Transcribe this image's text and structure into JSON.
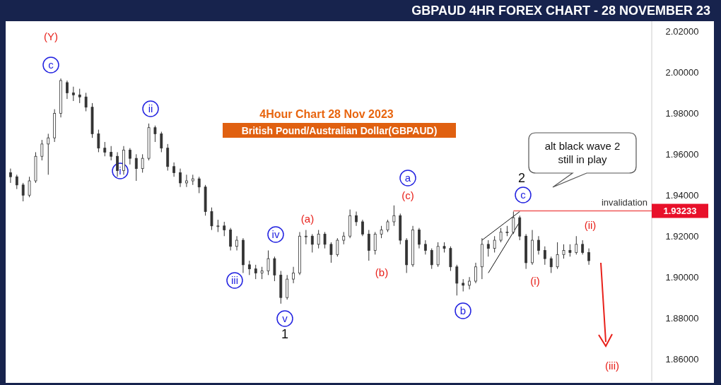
{
  "chart_data": {
    "type": "candlestick",
    "title": "GBPAUD 4HR FOREX CHART - 28 NOVEMBER 23",
    "categories": [
      null,
      null,
      null,
      null,
      null,
      null,
      null,
      null,
      null,
      null,
      null,
      null,
      null,
      null,
      null,
      null,
      null,
      null,
      null,
      null,
      null,
      null,
      null,
      null,
      null,
      null,
      null,
      null,
      null,
      null,
      null,
      null,
      null,
      null,
      null,
      null,
      null,
      null,
      null,
      null,
      null,
      null,
      null,
      null,
      null,
      null,
      null,
      null,
      null,
      null,
      null,
      null,
      null,
      null,
      null,
      null,
      null,
      null,
      null,
      null,
      null,
      null,
      null,
      null,
      null,
      null,
      null,
      null,
      null,
      null,
      null,
      null,
      null,
      null,
      null,
      null,
      null,
      null,
      null,
      null,
      null,
      null,
      null,
      null,
      null,
      null,
      null,
      null,
      null,
      null,
      null,
      null,
      null,
      null,
      null,
      null,
      null,
      null,
      null,
      null,
      null,
      null
    ],
    "ohlc": [
      [
        1.951,
        1.953,
        1.946,
        1.949
      ],
      [
        1.949,
        1.95,
        1.943,
        1.945
      ],
      [
        1.945,
        1.946,
        1.937,
        1.94
      ],
      [
        1.94,
        1.949,
        1.939,
        1.947
      ],
      [
        1.947,
        1.961,
        1.946,
        1.959
      ],
      [
        1.959,
        1.967,
        1.957,
        1.965
      ],
      [
        1.965,
        1.97,
        1.95,
        1.968
      ],
      [
        1.968,
        1.982,
        1.966,
        1.98
      ],
      [
        1.98,
        1.997,
        1.978,
        1.996
      ],
      [
        1.995,
        1.996,
        1.987,
        1.99
      ],
      [
        1.99,
        1.993,
        1.986,
        1.989
      ],
      [
        1.989,
        1.992,
        1.985,
        1.988
      ],
      [
        1.988,
        1.99,
        1.981,
        1.983
      ],
      [
        1.983,
        1.985,
        1.968,
        1.97
      ],
      [
        1.97,
        1.972,
        1.961,
        1.963
      ],
      [
        1.963,
        1.966,
        1.959,
        1.961
      ],
      [
        1.961,
        1.964,
        1.957,
        1.959
      ],
      [
        1.959,
        1.961,
        1.949,
        1.952
      ],
      [
        1.952,
        1.964,
        1.95,
        1.962
      ],
      [
        1.962,
        1.963,
        1.955,
        1.958
      ],
      [
        1.958,
        1.96,
        1.947,
        1.953
      ],
      [
        1.953,
        1.96,
        1.951,
        1.958
      ],
      [
        1.958,
        1.975,
        1.957,
        1.973
      ],
      [
        1.973,
        1.974,
        1.966,
        1.97
      ],
      [
        1.97,
        1.971,
        1.961,
        1.963
      ],
      [
        1.963,
        1.965,
        1.952,
        1.954
      ],
      [
        1.954,
        1.956,
        1.949,
        1.951
      ],
      [
        1.951,
        1.953,
        1.944,
        1.946
      ],
      [
        1.946,
        1.95,
        1.944,
        1.947
      ],
      [
        1.947,
        1.95,
        1.945,
        1.948
      ],
      [
        1.948,
        1.949,
        1.941,
        1.944
      ],
      [
        1.944,
        1.945,
        1.93,
        1.932
      ],
      [
        1.932,
        1.934,
        1.923,
        1.925
      ],
      [
        1.925,
        1.928,
        1.922,
        1.925
      ],
      [
        1.925,
        1.927,
        1.92,
        1.923
      ],
      [
        1.923,
        1.924,
        1.913,
        1.915
      ],
      [
        1.915,
        1.92,
        1.913,
        1.918
      ],
      [
        1.918,
        1.919,
        1.902,
        1.906
      ],
      [
        1.906,
        1.908,
        1.901,
        1.904
      ],
      [
        1.904,
        1.906,
        1.899,
        1.902
      ],
      [
        1.902,
        1.905,
        1.899,
        1.903
      ],
      [
        1.903,
        1.913,
        1.901,
        1.909
      ],
      [
        1.909,
        1.91,
        1.898,
        1.901
      ],
      [
        1.901,
        1.903,
        1.887,
        1.89
      ],
      [
        1.89,
        1.901,
        1.889,
        1.899
      ],
      [
        1.899,
        1.905,
        1.897,
        1.902
      ],
      [
        1.902,
        1.922,
        1.901,
        1.92
      ],
      [
        1.92,
        1.923,
        1.916,
        1.92
      ],
      [
        1.92,
        1.921,
        1.912,
        1.916
      ],
      [
        1.916,
        1.923,
        1.914,
        1.921
      ],
      [
        1.921,
        1.922,
        1.914,
        1.916
      ],
      [
        1.916,
        1.917,
        1.907,
        1.911
      ],
      [
        1.911,
        1.919,
        1.91,
        1.918
      ],
      [
        1.918,
        1.922,
        1.916,
        1.92
      ],
      [
        1.92,
        1.933,
        1.919,
        1.93
      ],
      [
        1.93,
        1.932,
        1.925,
        1.927
      ],
      [
        1.927,
        1.928,
        1.92,
        1.921
      ],
      [
        1.921,
        1.923,
        1.908,
        1.913
      ],
      [
        1.913,
        1.922,
        1.911,
        1.921
      ],
      [
        1.921,
        1.925,
        1.919,
        1.923
      ],
      [
        1.923,
        1.928,
        1.922,
        1.927
      ],
      [
        1.927,
        1.935,
        1.925,
        1.93
      ],
      [
        1.93,
        1.931,
        1.916,
        1.918
      ],
      [
        1.918,
        1.919,
        1.902,
        1.906
      ],
      [
        1.906,
        1.925,
        1.905,
        1.923
      ],
      [
        1.923,
        1.924,
        1.914,
        1.916
      ],
      [
        1.916,
        1.918,
        1.911,
        1.913
      ],
      [
        1.913,
        1.914,
        1.904,
        1.906
      ],
      [
        1.906,
        1.917,
        1.905,
        1.915
      ],
      [
        1.915,
        1.917,
        1.912,
        1.914
      ],
      [
        1.914,
        1.915,
        1.903,
        1.905
      ],
      [
        1.905,
        1.906,
        1.891,
        1.897
      ],
      [
        1.897,
        1.899,
        1.893,
        1.896
      ],
      [
        1.896,
        1.9,
        1.894,
        1.898
      ],
      [
        1.898,
        1.907,
        1.897,
        1.905
      ],
      [
        1.905,
        1.919,
        1.899,
        1.916
      ],
      [
        1.916,
        1.918,
        1.91,
        1.914
      ],
      [
        1.914,
        1.92,
        1.912,
        1.918
      ],
      [
        1.918,
        1.924,
        1.917,
        1.922
      ],
      [
        1.922,
        1.925,
        1.92,
        1.922
      ],
      [
        1.922,
        1.932,
        1.921,
        1.929
      ],
      [
        1.929,
        1.93,
        1.918,
        1.92
      ],
      [
        1.92,
        1.921,
        1.904,
        1.907
      ],
      [
        1.907,
        1.923,
        1.906,
        1.918
      ],
      [
        1.918,
        1.92,
        1.911,
        1.913
      ],
      [
        1.913,
        1.915,
        1.906,
        1.909
      ],
      [
        1.909,
        1.91,
        1.902,
        1.905
      ],
      [
        1.905,
        1.917,
        1.904,
        1.911
      ],
      [
        1.911,
        1.916,
        1.909,
        1.913
      ],
      [
        1.913,
        1.916,
        1.91,
        1.912
      ],
      [
        1.912,
        1.92,
        1.911,
        1.916
      ],
      [
        1.916,
        1.918,
        1.911,
        1.912
      ],
      [
        1.912,
        1.914,
        1.906,
        1.908
      ],
      null,
      null,
      null,
      null,
      null,
      null,
      null,
      null,
      null
    ],
    "color": "#333333",
    "series": [
      {
        "type": "line",
        "color": "#111111",
        "values": [
          null,
          null,
          null,
          null,
          null,
          null,
          null,
          null,
          null,
          null,
          null,
          null,
          null,
          null,
          null,
          null,
          null,
          null,
          null,
          null,
          null,
          null,
          null,
          null,
          null,
          null,
          null,
          null,
          null,
          null,
          null,
          null,
          null,
          null,
          null,
          null,
          null,
          null,
          null,
          null,
          null,
          null,
          null,
          null,
          null,
          null,
          null,
          null,
          null,
          null,
          null,
          null,
          null,
          null,
          null,
          null,
          null,
          null,
          null,
          null,
          null,
          null,
          null,
          null,
          null,
          null,
          null,
          null,
          null,
          null,
          null,
          null,
          null,
          null,
          null,
          1.918,
          null,
          null,
          null,
          null,
          null,
          1.932,
          null,
          null,
          null,
          null,
          null,
          null,
          null,
          null,
          null,
          null,
          null,
          null,
          null,
          null,
          null,
          null,
          null,
          null,
          null,
          null
        ]
      },
      {
        "type": "line",
        "color": "#111111",
        "values": [
          null,
          null,
          null,
          null,
          null,
          null,
          null,
          null,
          null,
          null,
          null,
          null,
          null,
          null,
          null,
          null,
          null,
          null,
          null,
          null,
          null,
          null,
          null,
          null,
          null,
          null,
          null,
          null,
          null,
          null,
          null,
          null,
          null,
          null,
          null,
          null,
          null,
          null,
          null,
          null,
          null,
          null,
          null,
          null,
          null,
          null,
          null,
          null,
          null,
          null,
          null,
          null,
          null,
          null,
          null,
          null,
          null,
          null,
          null,
          null,
          null,
          null,
          null,
          null,
          null,
          null,
          null,
          null,
          null,
          null,
          null,
          null,
          null,
          null,
          null,
          null,
          1.902,
          null,
          null,
          null,
          null,
          1.927,
          null,
          null,
          null,
          null,
          null,
          null,
          null,
          null,
          null,
          null,
          null,
          null,
          null,
          null,
          null,
          null,
          null,
          null,
          null,
          null
        ]
      }
    ],
    "ylim": [
      1.849,
      2.025
    ],
    "yticks": [
      {
        "value": 1.86,
        "label": "1.86000"
      },
      {
        "value": 1.88,
        "label": "1.88000"
      },
      {
        "value": 1.9,
        "label": "1.90000"
      },
      {
        "value": 1.92,
        "label": "1.92000"
      },
      {
        "value": 1.94,
        "label": "1.94000"
      },
      {
        "value": 1.96,
        "label": "1.96000"
      },
      {
        "value": 1.98,
        "label": "1.98000"
      },
      {
        "value": 2.0,
        "label": "2.00000"
      },
      {
        "value": 2.02,
        "label": "2.02000"
      }
    ],
    "tick_labels": "y",
    "grid": false,
    "ref_lines": [
      {
        "axis": "y",
        "value": 1.93233,
        "label": "invalidation",
        "color": "#f05a5a"
      }
    ],
    "annotations": [
      "4Hour Chart 28 Nov 2023",
      "British Pound/Australian Dollar(GBPAUD)",
      "alt black wave 2\nstill in play",
      "1.93233",
      "(Y)",
      "c",
      "ii",
      "i",
      "iii",
      "iv",
      "v",
      "1",
      "(a)",
      "(b)",
      "(c)",
      "a",
      "b",
      "c",
      "2",
      "(i)",
      "(ii)",
      "(iii)"
    ]
  }
}
